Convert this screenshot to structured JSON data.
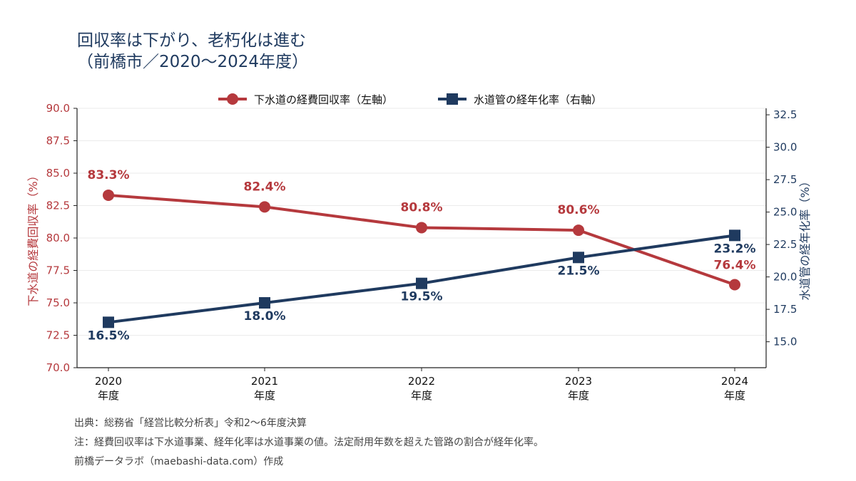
{
  "title_line1": "回収率は下がり、老朽化は進む",
  "title_line2": "（前橋市／2020〜2024年度）",
  "legend": {
    "left_series": "下水道の経費回収率（左軸）",
    "right_series": "水道管の経年化率（右軸）"
  },
  "footer": {
    "source": "出典：総務省「経営比較分析表」令和2〜6年度決算",
    "note": "注：経費回収率は下水道事業、経年化率は水道事業の値。法定耐用年数を超えた管路の割合が経年化率。",
    "credit": "前橋データラボ（maebashi-data.com）作成"
  },
  "chart_data": {
    "type": "line",
    "x_label_suffix": "年度",
    "categories": [
      "2020",
      "2021",
      "2022",
      "2023",
      "2024"
    ],
    "series": [
      {
        "name": "下水道の経費回収率（左軸）",
        "axis": "left",
        "values": [
          83.3,
          82.4,
          80.8,
          80.6,
          76.4
        ],
        "labels": [
          "83.3%",
          "82.4%",
          "80.8%",
          "80.6%",
          "76.4%"
        ],
        "marker": "circle",
        "color": "#b5393d"
      },
      {
        "name": "水道管の経年化率（右軸）",
        "axis": "right",
        "values": [
          16.5,
          18.0,
          19.5,
          21.5,
          23.2
        ],
        "labels": [
          "16.5%",
          "18.0%",
          "19.5%",
          "21.5%",
          "23.2%"
        ],
        "marker": "square",
        "color": "#1f3a5f"
      }
    ],
    "left_axis": {
      "label": "下水道の経費回収率（%）",
      "ylim": [
        70.0,
        90.0
      ],
      "ticks": [
        "70.0",
        "72.5",
        "75.0",
        "77.5",
        "80.0",
        "82.5",
        "85.0",
        "87.5",
        "90.0"
      ],
      "color": "#b5393d"
    },
    "right_axis": {
      "label": "水道管の経年化率（%）",
      "ylim": [
        13.0,
        33.0
      ],
      "ticks": [
        "15.0",
        "17.5",
        "20.0",
        "22.5",
        "25.0",
        "27.5",
        "30.0",
        "32.5"
      ],
      "color": "#1f3a5f"
    },
    "grid": "horizontal",
    "legend_position": "top"
  }
}
